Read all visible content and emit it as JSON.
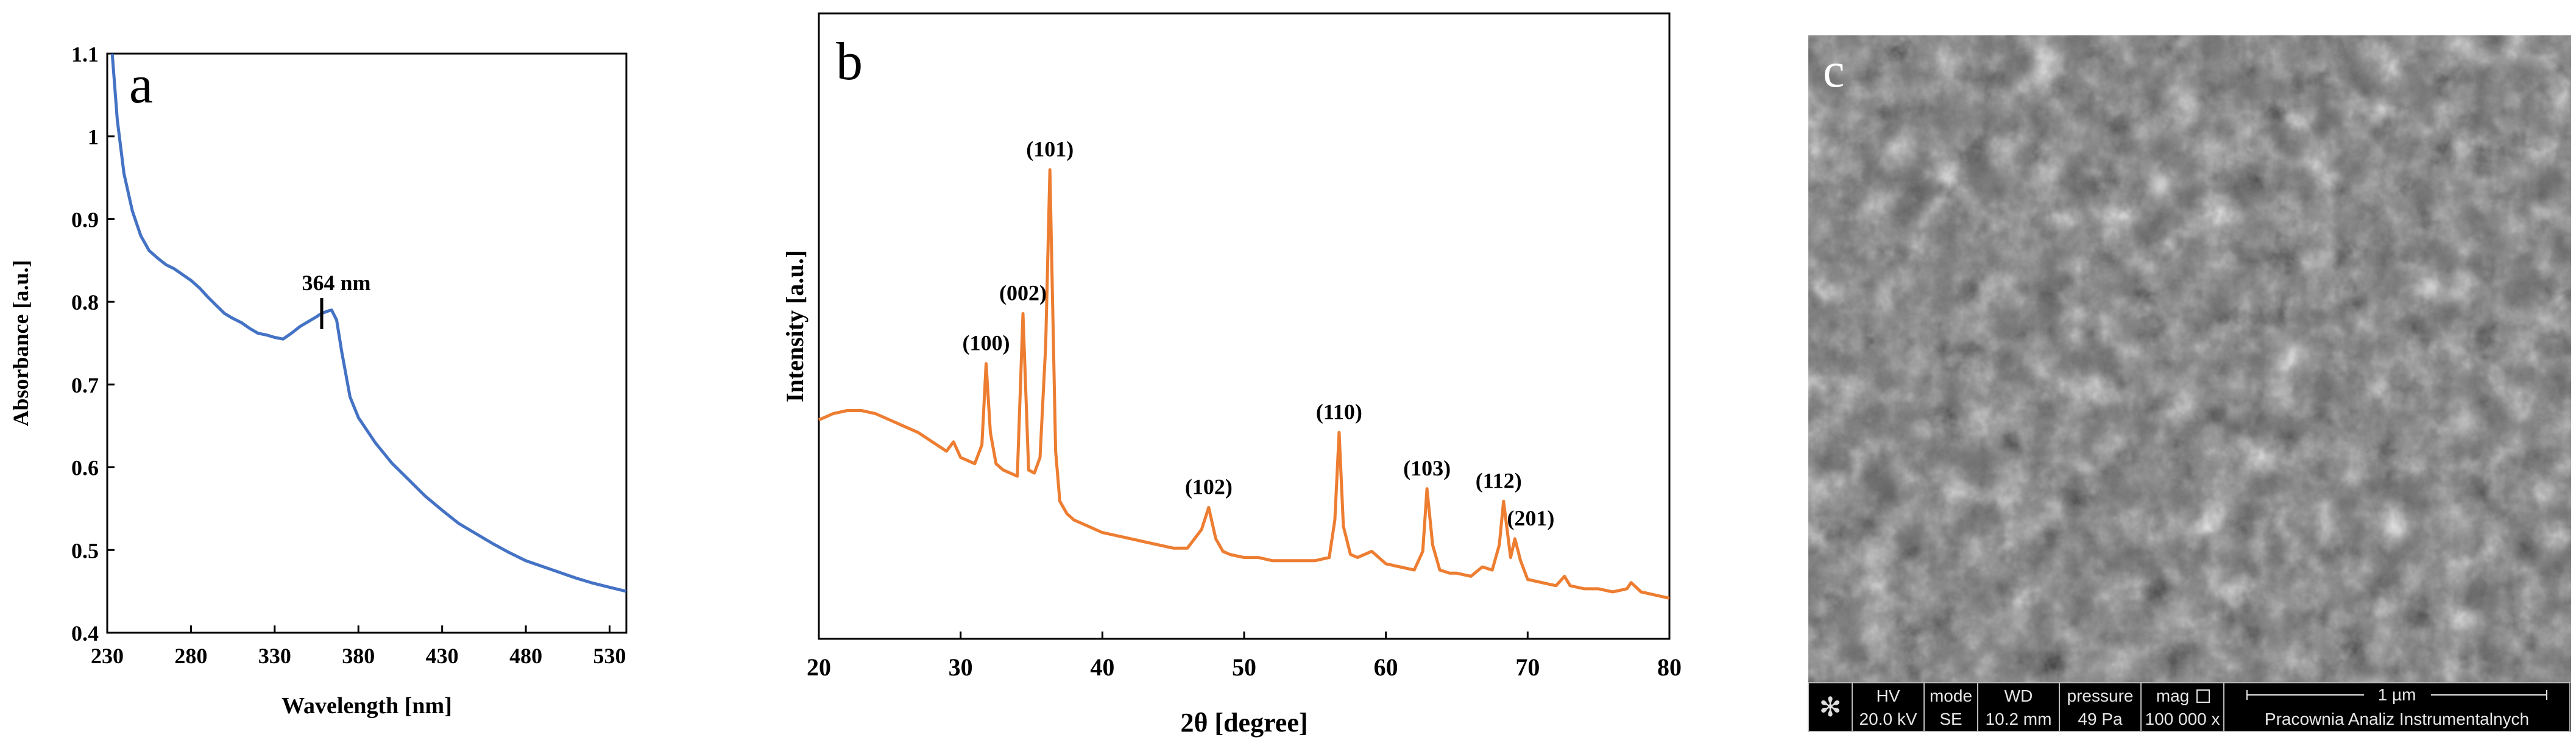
{
  "panels": {
    "a": {
      "panel_label": "a",
      "annotation": "364 nm"
    },
    "b": {
      "panel_label": "b"
    },
    "c": {
      "panel_label": "c",
      "sem_bar": {
        "hv_label": "HV",
        "hv_value": "20.0 kV",
        "mode_label": "mode",
        "mode_value": "SE",
        "wd_label": "WD",
        "wd_value": "10.2 mm",
        "pressure_label": "pressure",
        "pressure_value": "49 Pa",
        "mag_label": "mag",
        "mag_value": "100 000 x",
        "scale_label": "1 µm",
        "lab_name": "Pracownia Analiz Instrumentalnych"
      }
    }
  },
  "chart_data": [
    {
      "type": "line",
      "panel": "a",
      "title": "",
      "xlabel": "Wavelength [nm]",
      "ylabel": "Absorbance [a.u.]",
      "xlim": [
        230,
        540
      ],
      "ylim": [
        0.4,
        1.1
      ],
      "x_ticks": [
        230,
        280,
        330,
        380,
        430,
        480,
        530
      ],
      "y_ticks": [
        0.4,
        0.5,
        0.6,
        0.7,
        0.8,
        0.9,
        1.0,
        1.1
      ],
      "y_tick_labels": [
        "0.4",
        "0.5",
        "0.6",
        "0.7",
        "0.8",
        "0.9",
        "1",
        "1.1"
      ],
      "grid": false,
      "series": [
        {
          "color": "#4472C4",
          "x": [
            233,
            236,
            240,
            245,
            250,
            255,
            260,
            265,
            270,
            275,
            280,
            285,
            290,
            295,
            300,
            305,
            310,
            315,
            320,
            325,
            330,
            335,
            340,
            345,
            350,
            355,
            358,
            362,
            364,
            367,
            370,
            375,
            380,
            390,
            400,
            410,
            420,
            430,
            440,
            450,
            460,
            470,
            480,
            490,
            500,
            510,
            520,
            530,
            540
          ],
          "y": [
            1.1,
            1.02,
            0.955,
            0.91,
            0.88,
            0.862,
            0.853,
            0.845,
            0.84,
            0.833,
            0.826,
            0.817,
            0.806,
            0.796,
            0.786,
            0.78,
            0.775,
            0.768,
            0.762,
            0.76,
            0.757,
            0.755,
            0.762,
            0.77,
            0.776,
            0.782,
            0.786,
            0.789,
            0.79,
            0.778,
            0.74,
            0.685,
            0.66,
            0.63,
            0.605,
            0.585,
            0.565,
            0.548,
            0.532,
            0.52,
            0.508,
            0.497,
            0.487,
            0.48,
            0.473,
            0.466,
            0.46,
            0.455,
            0.45
          ]
        }
      ],
      "annotations": [
        {
          "text": "364 nm",
          "x": 364,
          "y": 0.79
        }
      ]
    },
    {
      "type": "line",
      "panel": "b",
      "title": "",
      "xlabel": "2θ [degree]",
      "ylabel": "Intensity [a.u.]",
      "xlim": [
        20,
        80
      ],
      "ylim": [
        0,
        100
      ],
      "x_ticks": [
        20,
        30,
        40,
        50,
        60,
        70,
        80
      ],
      "y_ticks_shown": false,
      "grid": false,
      "series": [
        {
          "color": "#ED7D31",
          "x": [
            20,
            21,
            22,
            23,
            24,
            25,
            26,
            27,
            28,
            29,
            29.5,
            30,
            30.5,
            31,
            31.5,
            31.8,
            32.1,
            32.5,
            33,
            33.5,
            34,
            34.4,
            34.8,
            35.2,
            35.6,
            36,
            36.3,
            36.7,
            37,
            37.5,
            38,
            39,
            40,
            41,
            42,
            43,
            44,
            45,
            46,
            47,
            47.5,
            48,
            48.5,
            49,
            50,
            51,
            52,
            53,
            54,
            55,
            56,
            56.4,
            56.7,
            57,
            57.5,
            58,
            59,
            60,
            61,
            62,
            62.6,
            62.9,
            63.3,
            63.8,
            64.5,
            65,
            66,
            66.8,
            67.5,
            68,
            68.3,
            68.8,
            69.1,
            69.5,
            70,
            71,
            72,
            72.6,
            73,
            74,
            75,
            76,
            77,
            77.3,
            78,
            79,
            80
          ],
          "y": [
            35,
            36,
            36.5,
            36.5,
            36,
            35,
            34,
            33,
            31.5,
            30,
            31.5,
            29,
            28.5,
            28,
            31,
            44,
            33,
            28,
            27,
            26.5,
            26,
            52,
            27,
            26.5,
            29,
            47,
            75,
            30,
            22,
            20,
            19,
            18,
            17,
            16.5,
            16,
            15.5,
            15,
            14.5,
            14.5,
            17.5,
            21,
            16,
            14,
            13.5,
            13,
            13,
            12.5,
            12.5,
            12.5,
            12.5,
            13,
            19,
            33,
            18,
            13.5,
            13,
            14,
            12,
            11.5,
            11,
            14,
            24,
            15,
            11,
            10.5,
            10.5,
            10,
            11.5,
            11,
            15,
            22,
            13,
            16,
            12.5,
            9.5,
            9,
            8.5,
            10,
            8.5,
            8,
            8,
            7.5,
            8,
            9,
            7.5,
            7,
            6.5
          ]
        }
      ],
      "annotations": [
        {
          "text": "(100)",
          "x": 31.8,
          "y": 44
        },
        {
          "text": "(002)",
          "x": 34.4,
          "y": 52
        },
        {
          "text": "(101)",
          "x": 36.3,
          "y": 75
        },
        {
          "text": "(102)",
          "x": 47.5,
          "y": 21
        },
        {
          "text": "(110)",
          "x": 56.7,
          "y": 33
        },
        {
          "text": "(103)",
          "x": 62.9,
          "y": 24
        },
        {
          "text": "(112)",
          "x": 68.3,
          "y": 22
        },
        {
          "text": "(201)",
          "x": 69.1,
          "y": 16
        }
      ]
    }
  ]
}
